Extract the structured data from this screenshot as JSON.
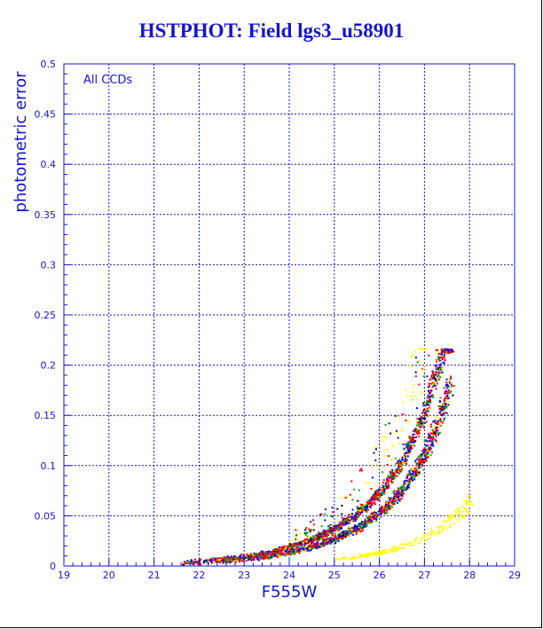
{
  "chart_data": {
    "type": "scatter",
    "title": "HSTPHOT: Field lgs3_u58901",
    "xlabel": "F555W",
    "ylabel": "photometric error",
    "annotation": "All CCDs",
    "xlim": [
      19,
      29
    ],
    "ylim": [
      0,
      0.5
    ],
    "x_ticks": [
      "19",
      "20",
      "21",
      "22",
      "23",
      "24",
      "25",
      "26",
      "27",
      "28",
      "29"
    ],
    "y_ticks": [
      "0",
      "0.05",
      "0.1",
      "0.15",
      "0.2",
      "0.25",
      "0.3",
      "0.35",
      "0.4",
      "0.45",
      "0.5"
    ],
    "grid": true,
    "point_colors": [
      "#ff0000",
      "#0000ff",
      "#00b400",
      "#ffff00",
      "#000000"
    ],
    "main_sequence": {
      "x": [
        21.5,
        22.0,
        22.5,
        23.0,
        23.5,
        24.0,
        24.5,
        25.0,
        25.5,
        26.0,
        26.5,
        27.0,
        27.3,
        27.6
      ],
      "y": [
        0.003,
        0.004,
        0.006,
        0.008,
        0.011,
        0.016,
        0.022,
        0.032,
        0.044,
        0.062,
        0.088,
        0.13,
        0.17,
        0.215
      ]
    },
    "yellow_sequence": {
      "x": [
        25.0,
        25.5,
        26.0,
        26.5,
        27.0,
        27.5,
        28.0
      ],
      "y": [
        0.006,
        0.009,
        0.013,
        0.019,
        0.028,
        0.042,
        0.062
      ]
    }
  }
}
